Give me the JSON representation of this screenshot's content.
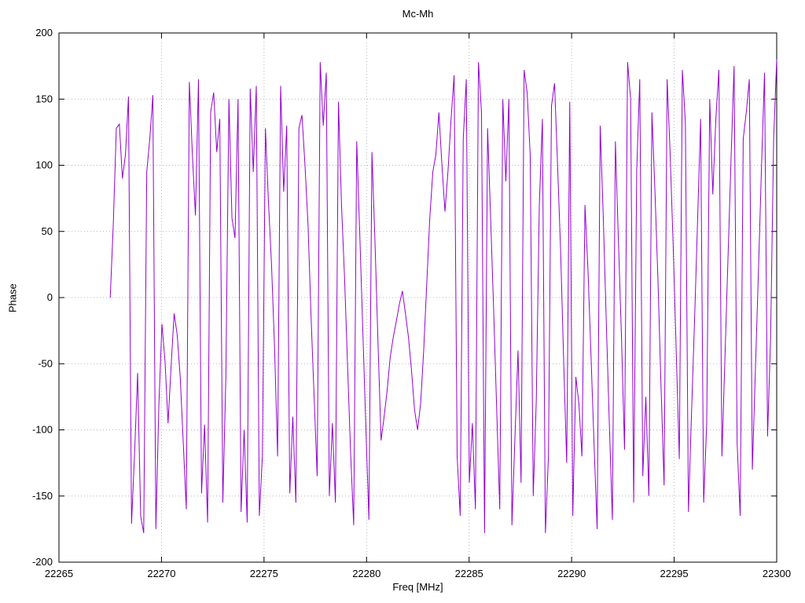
{
  "page": {
    "background": "#ffffff"
  },
  "chart_data": {
    "type": "line",
    "title": "Mc-Mh",
    "xlabel": "Freq [MHz]",
    "ylabel": "Phase",
    "xlim": [
      22265,
      22300
    ],
    "ylim": [
      -200,
      200
    ],
    "x_ticks": [
      22265,
      22270,
      22275,
      22280,
      22285,
      22290,
      22295,
      22300
    ],
    "y_ticks": [
      -200,
      -150,
      -100,
      -50,
      0,
      50,
      100,
      150,
      200
    ],
    "grid": "dotted",
    "legend": "none",
    "line_color": "#9400d3",
    "grid_color": "#b5b5b5",
    "border_color": "#000000",
    "series": [
      {
        "name": "Mc-Mh",
        "x_start": 22267.5,
        "x_end": 22300,
        "phase_values": [
          0,
          55,
          128,
          131,
          90,
          108,
          152,
          -171,
          -118,
          -57,
          -165,
          -178,
          95,
          120,
          153,
          -175,
          -80,
          -20,
          -48,
          -95,
          -52,
          -12,
          -28,
          -60,
          -110,
          -160,
          163,
          108,
          62,
          165,
          -148,
          -96,
          -170,
          140,
          155,
          110,
          135,
          -155,
          -60,
          150,
          60,
          45,
          150,
          -162,
          -100,
          -170,
          158,
          95,
          160,
          -165,
          -120,
          128,
          72,
          25,
          -38,
          -120,
          160,
          80,
          130,
          -148,
          -90,
          -155,
          128,
          138,
          100,
          55,
          -15,
          -75,
          -135,
          178,
          130,
          170,
          -150,
          -95,
          -155,
          148,
          70,
          15,
          -52,
          -118,
          -172,
          118,
          48,
          -25,
          -98,
          -168,
          110,
          42,
          -35,
          -108,
          -90,
          -70,
          -45,
          -30,
          -18,
          -5,
          5,
          -12,
          -30,
          -55,
          -85,
          -100,
          -80,
          -40,
          10,
          60,
          95,
          108,
          140,
          100,
          65,
          96,
          135,
          168,
          -120,
          -165,
          120,
          165,
          -140,
          -95,
          -160,
          178,
          140,
          -178,
          128,
          60,
          -10,
          -85,
          -160,
          150,
          88,
          150,
          -172,
          -105,
          -40,
          -140,
          172,
          155,
          108,
          -150,
          -78,
          70,
          135,
          -178,
          -120,
          145,
          162,
          100,
          35,
          -48,
          -125,
          148,
          -165,
          -60,
          -80,
          -120,
          70,
          20,
          -45,
          -112,
          -175,
          130,
          62,
          -18,
          -95,
          -168,
          118,
          42,
          -30,
          -115,
          178,
          150,
          -155,
          96,
          165,
          -135,
          -75,
          -150,
          140,
          80,
          12,
          -68,
          -142,
          165,
          108,
          38,
          -42,
          -122,
          172,
          132,
          -162,
          -88,
          -18,
          58,
          135,
          -155,
          -95,
          150,
          78,
          135,
          172,
          -120,
          -45,
          30,
          105,
          175,
          -110,
          -165,
          120,
          140,
          165,
          -130,
          -55,
          20,
          98,
          170,
          -105,
          -30,
          120,
          180
        ]
      }
    ]
  }
}
